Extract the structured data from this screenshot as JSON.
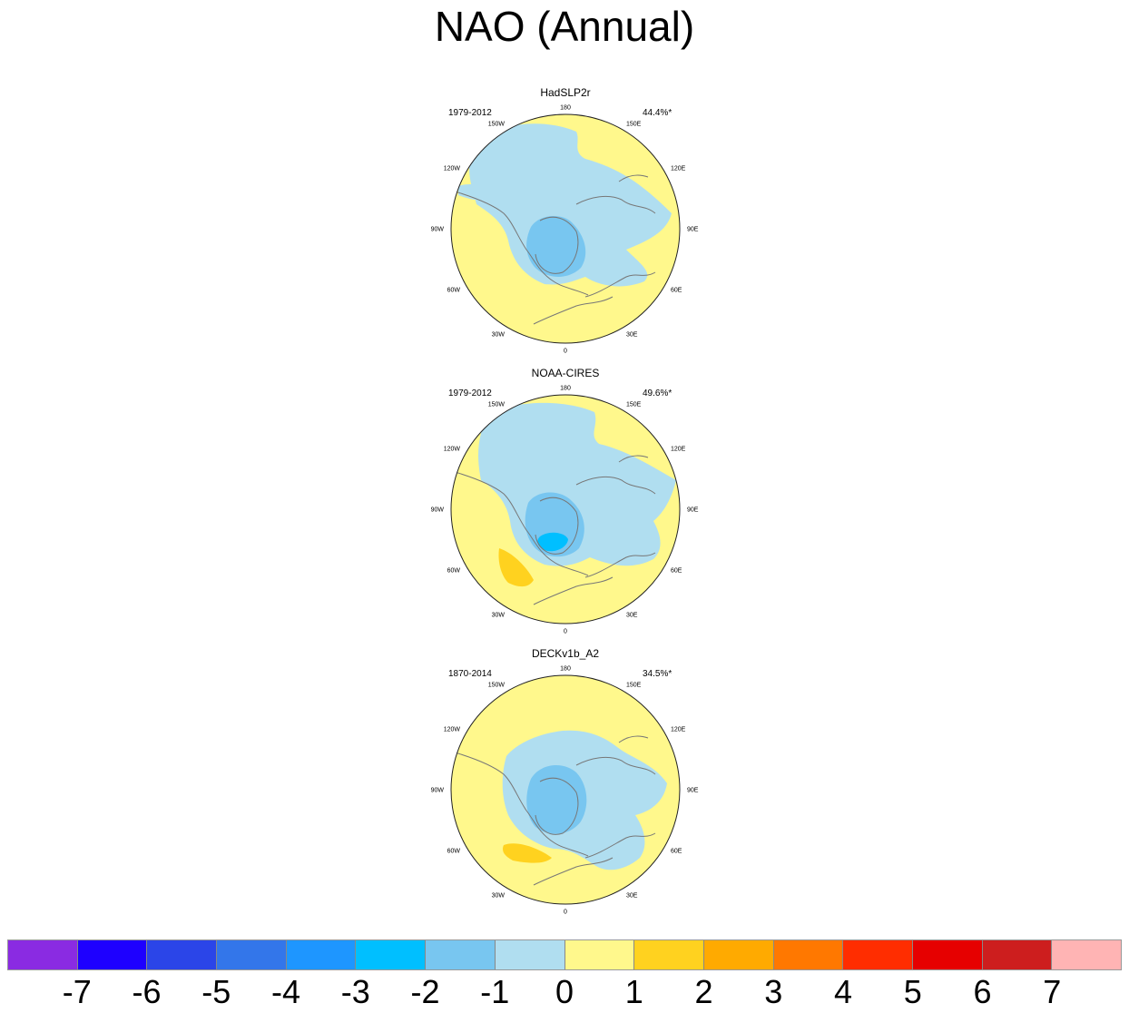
{
  "title": "NAO (Annual)",
  "colors": {
    "bins": [
      "#8a2be2",
      "#1e00ff",
      "#2b45e8",
      "#3376ea",
      "#1e96ff",
      "#00bfff",
      "#78c6f0",
      "#b0def0",
      "#fff88c",
      "#ffd21f",
      "#ffaa00",
      "#ff7800",
      "#ff2d00",
      "#e60000",
      "#cd1e1e",
      "#ffb4b4"
    ],
    "coast": "#777777"
  },
  "lon_labels": [
    "180",
    "150E",
    "120E",
    "90E",
    "60E",
    "30E",
    "0",
    "30W",
    "60W",
    "90W",
    "120W",
    "150W"
  ],
  "chart_data": [
    {
      "type": "heatmap",
      "dataset": "HadSLP2r",
      "period": "1979-2012",
      "variance_explained": "44.4%*",
      "min_value": -3,
      "max_value": 0,
      "min_region": "Arctic / Greenland",
      "positive_centre": null
    },
    {
      "type": "heatmap",
      "dataset": "NOAA-CIRES",
      "period": "1979-2012",
      "variance_explained": "49.6%*",
      "min_value": -3,
      "max_value": 2,
      "min_region": "Arctic / Greenland",
      "positive_centre": "North Atlantic"
    },
    {
      "type": "heatmap",
      "dataset": "DECKv1b_A2",
      "period": "1870-2014",
      "variance_explained": "34.5%*",
      "min_value": -2,
      "max_value": 2,
      "min_region": "Arctic / Greenland",
      "positive_centre": "North Atlantic"
    }
  ],
  "colorbar": {
    "tick_labels": [
      "-7",
      "-6",
      "-5",
      "-4",
      "-3",
      "-2",
      "-1",
      "0",
      "1",
      "2",
      "3",
      "4",
      "5",
      "6",
      "7"
    ]
  }
}
